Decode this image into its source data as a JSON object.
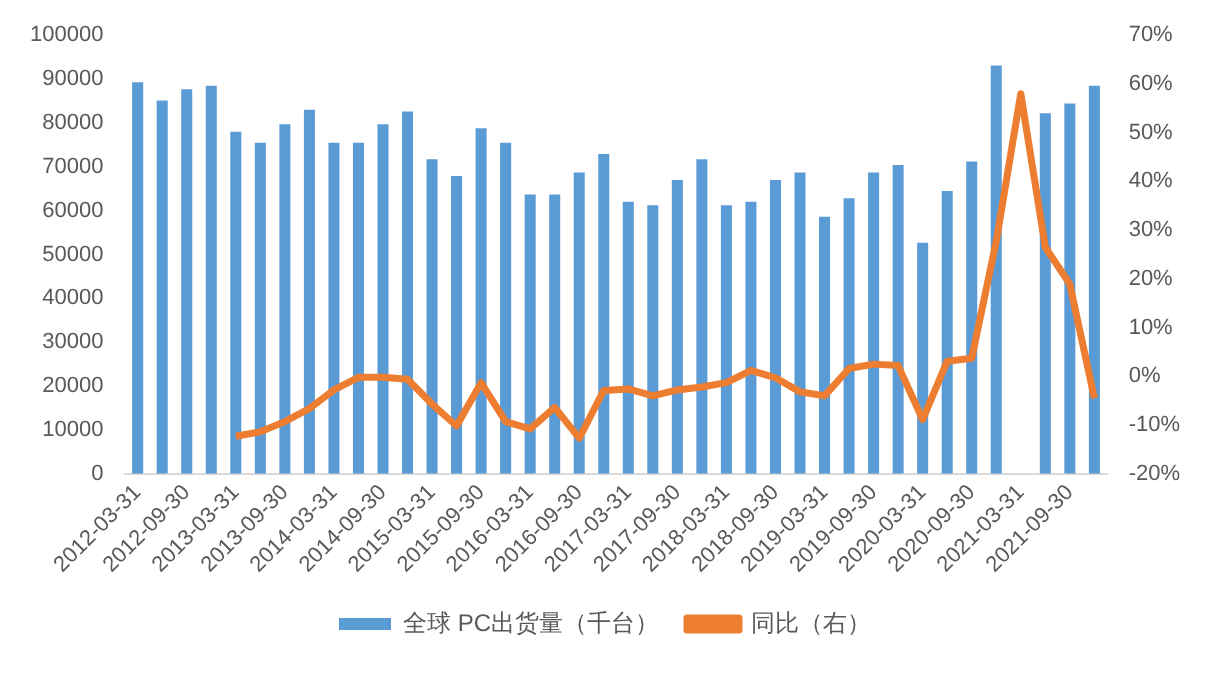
{
  "chart_data": {
    "type": "bar",
    "categories": [
      "2012-03-31",
      null,
      "2012-09-30",
      null,
      "2013-03-31",
      null,
      "2013-09-30",
      null,
      "2014-03-31",
      null,
      "2014-09-30",
      null,
      "2015-03-31",
      null,
      "2015-09-30",
      null,
      "2016-03-31",
      null,
      "2016-09-30",
      null,
      "2017-03-31",
      null,
      "2017-09-30",
      null,
      "2018-03-31",
      null,
      "2018-09-30",
      null,
      "2019-03-31",
      null,
      "2019-09-30",
      null,
      "2020-03-31",
      null,
      "2020-09-30",
      null,
      "2021-03-31",
      null,
      "2021-09-30",
      null
    ],
    "series": [
      {
        "name": "全球 PC出货量（千台）",
        "color": "#5b9bd5",
        "values": [
          89300,
          85100,
          87700,
          88500,
          78000,
          75500,
          79700,
          83000,
          75500,
          75500,
          79700,
          82600,
          71700,
          67900,
          78800,
          75500,
          63700,
          63700,
          68700,
          72900,
          62000,
          61200,
          67000,
          71700,
          61200,
          62000,
          67000,
          68700,
          58600,
          62800,
          68700,
          70400,
          52700,
          64500,
          71200,
          93100,
          null,
          82200,
          84400,
          88500
        ]
      },
      {
        "name": "同比（右）",
        "type": "line",
        "axis": "y2",
        "color": "#ed7d31",
        "values": [
          null,
          null,
          null,
          null,
          -12.3,
          -11.4,
          -9.3,
          -6.6,
          -2.8,
          -0.2,
          -0.2,
          -0.6,
          -5.7,
          -10.2,
          -1.3,
          -9.3,
          -10.8,
          -6.4,
          -12.7,
          -2.9,
          -2.6,
          -4.0,
          -2.8,
          -2.2,
          -1.3,
          1.2,
          -0.3,
          -3.2,
          -4.0,
          1.6,
          2.5,
          2.2,
          -8.9,
          3.1,
          3.7,
          27.7,
          58.0,
          26.5,
          18.9,
          -4.5
        ]
      }
    ],
    "ylim": [
      0,
      100000
    ],
    "yticks": [
      0,
      10000,
      20000,
      30000,
      40000,
      50000,
      60000,
      70000,
      80000,
      90000,
      100000
    ],
    "y2lim": [
      -20,
      70
    ],
    "y2ticks": [
      {
        "value": -20,
        "label": "-20%"
      },
      {
        "value": -10,
        "label": "-10%"
      },
      {
        "value": 0,
        "label": "0%"
      },
      {
        "value": 10,
        "label": "10%"
      },
      {
        "value": 20,
        "label": "20%"
      },
      {
        "value": 30,
        "label": "30%"
      },
      {
        "value": 40,
        "label": "40%"
      },
      {
        "value": 50,
        "label": "50%"
      },
      {
        "value": 60,
        "label": "60%"
      },
      {
        "value": 70,
        "label": "70%"
      }
    ],
    "grid": false,
    "legend": "bottom",
    "marker": "none",
    "line_style": "solid"
  }
}
